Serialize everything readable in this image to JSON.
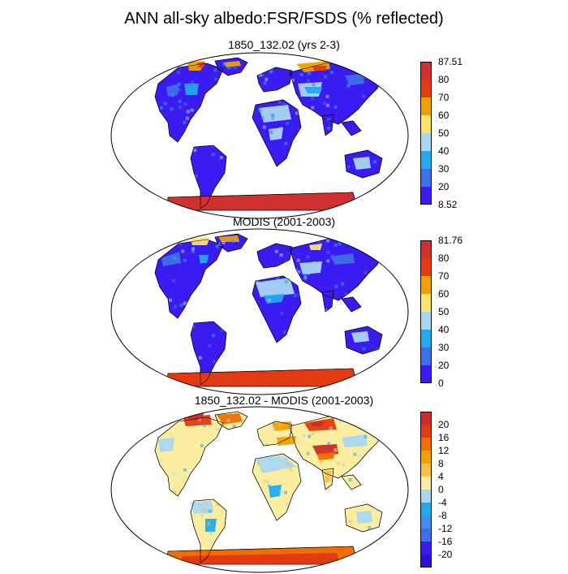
{
  "title": "ANN all-sky albedo:FSR/FSDS (% reflected)",
  "panels": [
    {
      "id": "model",
      "subtitle": "1850_132.02 (yrs 2-3)",
      "palette": "albedo",
      "colorbar": {
        "labels": [
          "87.51",
          "80",
          "70",
          "60",
          "50",
          "40",
          "30",
          "20",
          "8.52"
        ],
        "colors": [
          "#d03030",
          "#e43a12",
          "#f0a000",
          "#fce36a",
          "#a9d6f2",
          "#21a9f0",
          "#3f6fe6",
          "#3a1cf2"
        ]
      }
    },
    {
      "id": "obs",
      "subtitle": "MODIS (2001-2003)",
      "palette": "albedo",
      "colorbar": {
        "labels": [
          "81.76",
          "80",
          "70",
          "60",
          "50",
          "40",
          "30",
          "20",
          "0"
        ],
        "colors": [
          "#d03030",
          "#e43a12",
          "#f0a000",
          "#fce36a",
          "#a9d6f2",
          "#21a9f0",
          "#3f6fe6",
          "#3a1cf2"
        ]
      }
    },
    {
      "id": "diff",
      "subtitle": "1850_132.02 - MODIS (2001-2003)",
      "palette": "diff",
      "colorbar": {
        "labels": [
          "20",
          "16",
          "12",
          "8",
          "4",
          "0",
          "-4",
          "-8",
          "-12",
          "-16",
          "-20"
        ],
        "colors": [
          "#cc2a2a",
          "#e43a12",
          "#f26d00",
          "#f0a000",
          "#f6c04a",
          "#fbeea0",
          "#a9d6f2",
          "#21a9f0",
          "#3f8ef0",
          "#3f6fe6",
          "#3a1cf2",
          "#2a10d8"
        ]
      }
    }
  ],
  "colors": {
    "land_low": "#3a1cf2",
    "antarctica_model": "#d03030",
    "antarctica_obs": "#e43a12",
    "coast": "#000000"
  }
}
